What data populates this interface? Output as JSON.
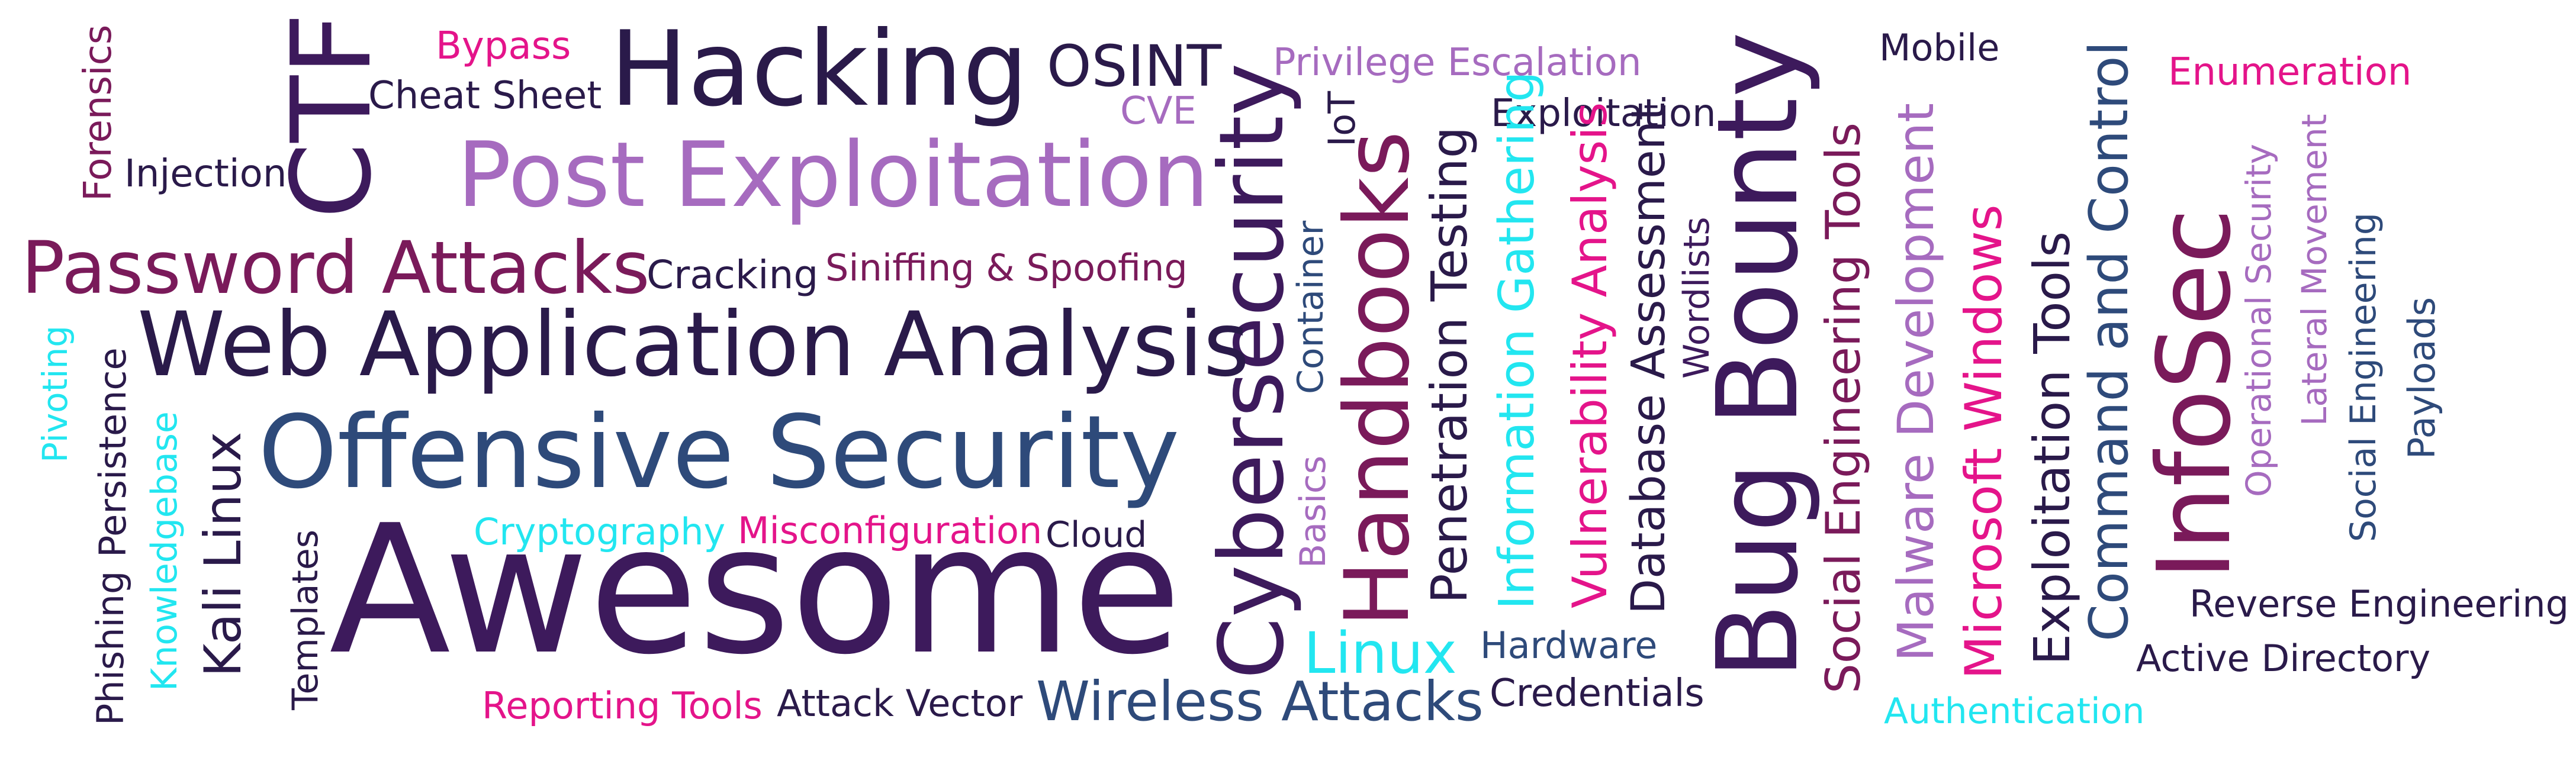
{
  "colors": {
    "dark_purple": "#3d1a5c",
    "navy": "#2a1a4a",
    "slate_blue": "#2e4a7a",
    "lavender": "#a66bbf",
    "magenta": "#e4148a",
    "cyan": "#22e6f0",
    "wine": "#7a1a5a"
  },
  "words": [
    {
      "text": "Forensics"
    },
    {
      "text": "Injection"
    },
    {
      "text": "Bypass"
    },
    {
      "text": "CTF"
    },
    {
      "text": "Cheat Sheet"
    },
    {
      "text": "Hacking"
    },
    {
      "text": "OSINT"
    },
    {
      "text": "CVE"
    },
    {
      "text": "Privilege Escalation"
    },
    {
      "text": "Mobile"
    },
    {
      "text": "Enumeration"
    },
    {
      "text": "Post Exploitation"
    },
    {
      "text": "Cybersecurity"
    },
    {
      "text": "IoT"
    },
    {
      "text": "Handbooks"
    },
    {
      "text": "Penetration Testing"
    },
    {
      "text": "Exploitation"
    },
    {
      "text": "Information Gathering"
    },
    {
      "text": "Vulnerability Analysis"
    },
    {
      "text": "Database Assessment"
    },
    {
      "text": "Wordlists"
    },
    {
      "text": "Bug Bounty"
    },
    {
      "text": "Social Engineering Tools"
    },
    {
      "text": "Malware Development"
    },
    {
      "text": "Microsoft Windows"
    },
    {
      "text": "Exploitation Tools"
    },
    {
      "text": "Command and Control"
    },
    {
      "text": "InfoSec"
    },
    {
      "text": "Operational Security"
    },
    {
      "text": "Lateral Movement"
    },
    {
      "text": "Social Engineering"
    },
    {
      "text": "Payloads"
    },
    {
      "text": "Password Attacks"
    },
    {
      "text": "Cracking"
    },
    {
      "text": "Siniffing & Spoofing"
    },
    {
      "text": "Web Application Analysis"
    },
    {
      "text": "Container"
    },
    {
      "text": "Pivoting"
    },
    {
      "text": "Persistence"
    },
    {
      "text": "Knowledgebase"
    },
    {
      "text": "Kali Linux"
    },
    {
      "text": "Offensive Security"
    },
    {
      "text": "Basics"
    },
    {
      "text": "Phishing"
    },
    {
      "text": "Templates"
    },
    {
      "text": "Awesome"
    },
    {
      "text": "Cryptography"
    },
    {
      "text": "Misconfiguration"
    },
    {
      "text": "Cloud"
    },
    {
      "text": "Linux"
    },
    {
      "text": "Hardware"
    },
    {
      "text": "Credentials"
    },
    {
      "text": "Reverse Engineering"
    },
    {
      "text": "Active Directory"
    },
    {
      "text": "Reporting Tools"
    },
    {
      "text": "Attack Vector"
    },
    {
      "text": "Wireless Attacks"
    },
    {
      "text": "Authentication"
    }
  ]
}
